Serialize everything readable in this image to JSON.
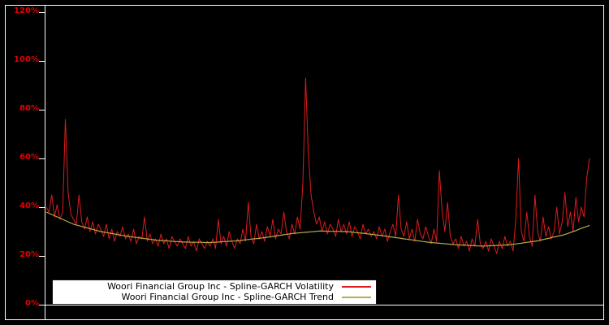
{
  "window": {
    "background": "#000000",
    "frame_color": "#ffffff"
  },
  "y_axis": {
    "tick_labels": [
      "0%",
      "20%",
      "40%",
      "60%",
      "80%",
      "100%",
      "120%"
    ],
    "label_color": "#e60000"
  },
  "legend": {
    "background": "#ffffff",
    "text_color": "#000000",
    "position": "bottom-inside"
  },
  "chart_data": {
    "type": "line",
    "x_labels_visible": false,
    "n_points": 200,
    "ylim": [
      0,
      120
    ],
    "y_unit": "%",
    "y_tick_step": 20,
    "grid": false,
    "background": "#000000",
    "series": [
      {
        "name": "Woori Financial Group Inc - Spline-GARCH Volatility",
        "color": "#dc1c1c",
        "values": [
          40,
          38,
          45,
          36,
          41,
          35,
          38,
          76,
          46,
          37,
          35,
          33,
          45,
          34,
          31,
          36,
          30,
          34,
          29,
          33,
          31,
          28,
          33,
          27,
          31,
          26,
          30,
          28,
          32,
          27,
          29,
          26,
          31,
          25,
          28,
          27,
          36,
          26,
          29,
          25,
          27,
          24,
          29,
          25,
          27,
          23,
          28,
          26,
          24,
          27,
          25,
          23,
          28,
          24,
          26,
          22,
          27,
          25,
          23,
          26,
          24,
          27,
          23,
          35,
          25,
          28,
          24,
          30,
          26,
          23,
          27,
          25,
          31,
          26,
          42,
          28,
          25,
          33,
          27,
          30,
          26,
          32,
          28,
          35,
          27,
          31,
          29,
          38,
          30,
          27,
          33,
          29,
          36,
          31,
          50,
          93,
          62,
          45,
          38,
          33,
          36,
          30,
          34,
          29,
          33,
          31,
          28,
          35,
          30,
          33,
          29,
          34,
          28,
          32,
          30,
          27,
          33,
          29,
          31,
          28,
          30,
          27,
          32,
          28,
          31,
          26,
          30,
          33,
          28,
          45,
          31,
          28,
          34,
          27,
          31,
          26,
          35,
          29,
          27,
          32,
          28,
          25,
          31,
          26,
          55,
          38,
          30,
          42,
          28,
          25,
          27,
          23,
          28,
          24,
          26,
          22,
          27,
          24,
          35,
          25,
          23,
          26,
          22,
          27,
          24,
          21,
          26,
          23,
          28,
          24,
          26,
          22,
          35,
          60,
          30,
          26,
          38,
          28,
          24,
          45,
          30,
          26,
          36,
          28,
          32,
          27,
          30,
          40,
          29,
          34,
          46,
          32,
          38,
          30,
          44,
          34,
          40,
          36,
          52,
          60
        ]
      },
      {
        "name": "Woori Financial Group Inc - Spline-GARCH Trend",
        "color": "#b9ad45",
        "values": [
          38.0,
          37.5,
          37.0,
          36.5,
          36.0,
          35.5,
          35.0,
          34.5,
          34.0,
          33.5,
          33.0,
          32.7,
          32.4,
          32.1,
          31.8,
          31.5,
          31.2,
          30.9,
          30.6,
          30.3,
          30.0,
          29.8,
          29.6,
          29.4,
          29.2,
          29.0,
          28.8,
          28.6,
          28.4,
          28.2,
          28.0,
          27.9,
          27.7,
          27.6,
          27.4,
          27.3,
          27.1,
          27.0,
          26.8,
          26.7,
          26.5,
          26.4,
          26.3,
          26.3,
          26.2,
          26.1,
          26.0,
          25.9,
          25.9,
          25.8,
          25.7,
          25.7,
          25.7,
          25.6,
          25.6,
          25.6,
          25.6,
          25.6,
          25.5,
          25.5,
          25.5,
          25.6,
          25.6,
          25.7,
          25.8,
          25.9,
          25.9,
          26.0,
          26.1,
          26.1,
          26.2,
          26.3,
          26.5,
          26.6,
          26.7,
          26.9,
          27.0,
          27.1,
          27.2,
          27.4,
          27.5,
          27.7,
          27.8,
          28.0,
          28.2,
          28.4,
          28.5,
          28.7,
          28.9,
          29.0,
          29.2,
          29.3,
          29.4,
          29.5,
          29.6,
          29.7,
          29.8,
          29.9,
          30.0,
          30.1,
          30.2,
          30.2,
          30.2,
          30.1,
          30.1,
          30.1,
          30.1,
          30.1,
          30.0,
          30.0,
          30.0,
          29.9,
          29.8,
          29.6,
          29.5,
          29.4,
          29.3,
          29.2,
          29.0,
          28.9,
          28.8,
          28.6,
          28.5,
          28.3,
          28.2,
          28.0,
          27.8,
          27.7,
          27.5,
          27.4,
          27.2,
          27.0,
          26.9,
          26.7,
          26.6,
          26.4,
          26.2,
          26.1,
          25.9,
          25.8,
          25.6,
          25.5,
          25.4,
          25.3,
          25.2,
          25.1,
          25.0,
          24.9,
          24.8,
          24.7,
          24.6,
          24.5,
          24.5,
          24.4,
          24.4,
          24.3,
          24.2,
          24.2,
          24.1,
          24.1,
          24.0,
          24.1,
          24.1,
          24.2,
          24.2,
          24.3,
          24.4,
          24.4,
          24.5,
          24.5,
          24.6,
          24.8,
          24.9,
          25.1,
          25.2,
          25.4,
          25.6,
          25.7,
          25.9,
          26.0,
          26.2,
          26.5,
          26.7,
          27.0,
          27.2,
          27.5,
          27.8,
          28.0,
          28.3,
          28.5,
          28.8,
          29.2,
          29.6,
          30.0,
          30.4,
          30.9,
          31.3,
          31.7,
          32.1,
          32.5
        ]
      }
    ]
  }
}
